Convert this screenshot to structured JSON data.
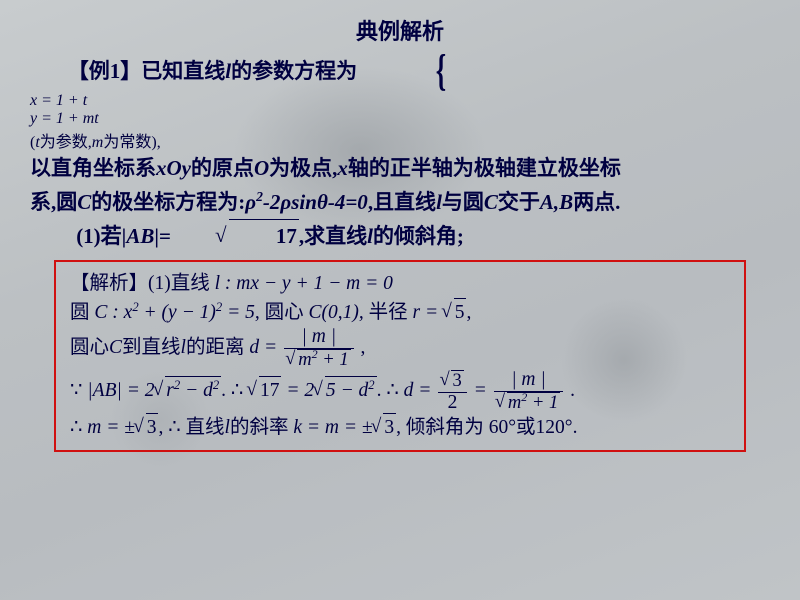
{
  "title": "典例解析",
  "problem": {
    "line1a": "【例1】已知直线",
    "line1b": "的参数方程为",
    "param_eq_top": "x = 1 + t",
    "param_eq_bot": "y = 1 + mt",
    "line1c": "(",
    "line1d": "为参数,",
    "line1e": "为常数),",
    "line2a": "以直角坐标系",
    "line2b": "的原点",
    "line2c": "为极点,",
    "line2d": "轴的正半轴为极轴建立极坐标",
    "line3a": "系,圆",
    "line3b": "的极坐标方程为:",
    "polar_eq": "ρ²-2ρsinθ-4=0",
    "line3c": ",且直线",
    "line3d": "与圆",
    "line3e": "交于",
    "line3f": "两点.",
    "q1a": "(1)若|",
    "q1b": "|=",
    "ab_len": "17",
    "q1c": ",求直线",
    "q1d": "的倾斜角;"
  },
  "solution": {
    "s1a": "【解析】(1)直线",
    "s1_eq": " l : mx − y + 1 − m = 0",
    "s2a": "圆",
    "s2_eq": "C : x² + (y − 1)² = 5,",
    "s2b": "圆心",
    "s2c": "C(0,1),",
    "s2d": "半径",
    "s2e": "r = ",
    "s2_r": "5",
    "s2f": ",",
    "s3a": "圆心",
    "s3b": "到直线",
    "s3c": "的距离",
    "s3_d": "d = ",
    "s3_num": "| m |",
    "s3_den": "m² + 1",
    "s3e": ",",
    "s4_a": "|AB| = 2",
    "s4_rd": "r² − d²",
    "s4_b": ".",
    "s4_c": "17",
    "s4_d": " = 2",
    "s4_e": "5 − d²",
    "s4_f": ".",
    "s4_g": "d = ",
    "s4_h_num": "3",
    "s4_h_den": "2",
    "s4_i": " = ",
    "s4_j_num": "| m |",
    "s4_j_den": "m² + 1",
    "s4_k": ".",
    "s5_a": "m = ±",
    "s5_b": "3",
    "s5_c": ",",
    "s5_d": "直线",
    "s5_e": "的斜率",
    "s5_f": "k = m = ±",
    "s5_g": "3",
    "s5_h": ",",
    "s5_i": "倾斜角为",
    "s5_j": "60°",
    "s5_k": "或",
    "s5_l": "120°."
  },
  "colors": {
    "text": "#000040",
    "border": "#d01010",
    "bg": "#c0c4c7"
  }
}
